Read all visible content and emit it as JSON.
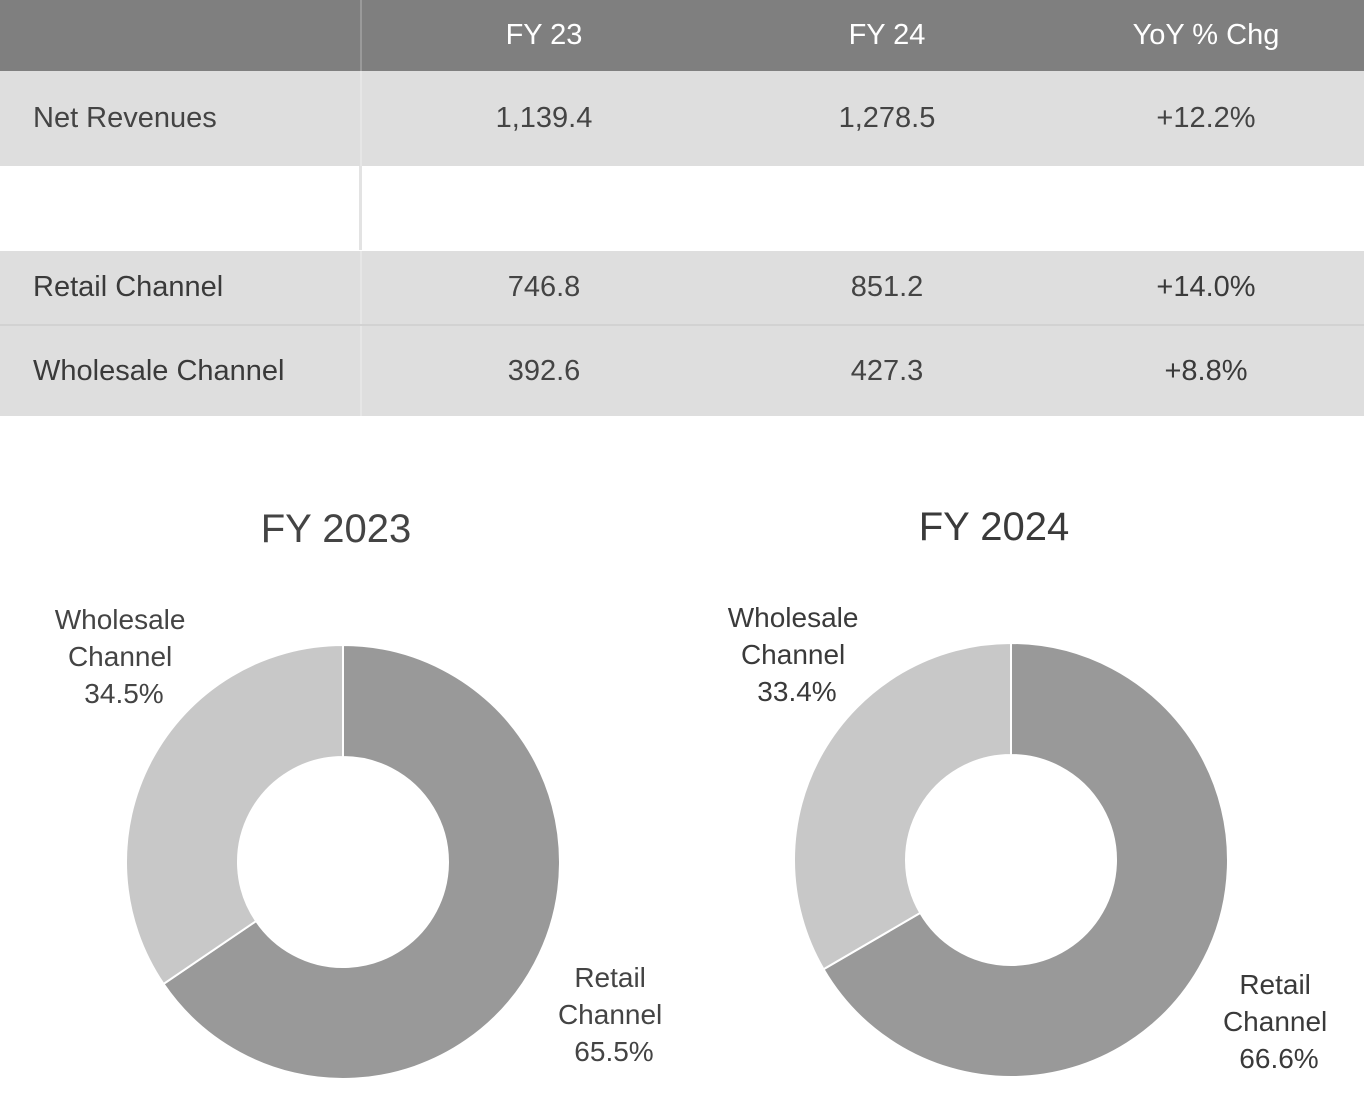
{
  "table": {
    "headers": [
      "",
      "FY 23",
      "FY 24",
      "YoY % Chg"
    ],
    "rows": [
      {
        "label": "Net Revenues",
        "fy23": "1,139.4",
        "fy24": "1,278.5",
        "yoy": "+12.2%"
      },
      {
        "label": "Retail Channel",
        "fy23": "746.8",
        "fy24": "851.2",
        "yoy": "+14.0%"
      },
      {
        "label": "Wholesale Channel",
        "fy23": "392.6",
        "fy24": "427.3",
        "yoy": "+8.8%"
      }
    ]
  },
  "chart_data": [
    {
      "type": "pie",
      "donut": true,
      "title": "FY 2023",
      "slices": [
        {
          "label_lines": [
            "Retail",
            "Channel"
          ],
          "pct_label": "65.5%",
          "value": 65.5,
          "color": "#999999"
        },
        {
          "label_lines": [
            "Wholesale",
            "Channel"
          ],
          "pct_label": "34.5%",
          "value": 34.5,
          "color": "#c8c8c8"
        }
      ]
    },
    {
      "type": "pie",
      "donut": true,
      "title": "FY 2024",
      "slices": [
        {
          "label_lines": [
            "Retail",
            "Channel"
          ],
          "pct_label": "66.6%",
          "value": 66.6,
          "color": "#999999"
        },
        {
          "label_lines": [
            "Wholesale",
            "Channel"
          ],
          "pct_label": "33.4%",
          "value": 33.4,
          "color": "#c8c8c8"
        }
      ]
    }
  ]
}
